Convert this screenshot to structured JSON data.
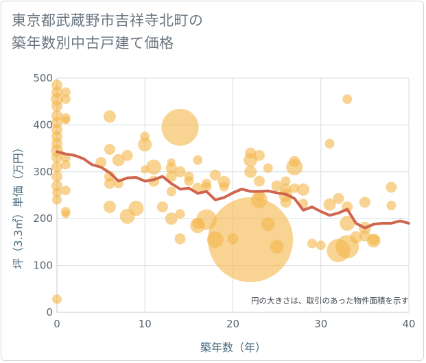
{
  "title_lines": [
    "東京都武蔵野市吉祥寺北町の",
    "築年数別中古戸建て価格"
  ],
  "chart_data": {
    "type": "scatter",
    "title": "東京都武蔵野市吉祥寺北町の築年数別中古戸建て価格",
    "xlabel": "築年数（年）",
    "ylabel": "坪（3.3㎡）単価（万円）",
    "xlim": [
      0,
      40
    ],
    "ylim": [
      0,
      500
    ],
    "xticks": [
      0,
      10,
      20,
      30,
      40
    ],
    "yticks": [
      0,
      100,
      200,
      300,
      400,
      500
    ],
    "grid": true,
    "annotation": "円の大きさは、取引のあった物件面積を示す",
    "colors": {
      "bubble": "#f3b84f",
      "line": "#d0654e",
      "grid": "#d5dde4",
      "axis": "#c6ccd2"
    },
    "bubbles": [
      {
        "x": 0,
        "y": 485,
        "s": 8
      },
      {
        "x": 0,
        "y": 470,
        "s": 8
      },
      {
        "x": 0,
        "y": 455,
        "s": 9
      },
      {
        "x": 0,
        "y": 440,
        "s": 8
      },
      {
        "x": 0,
        "y": 420,
        "s": 8
      },
      {
        "x": 0,
        "y": 405,
        "s": 8
      },
      {
        "x": 0,
        "y": 390,
        "s": 8
      },
      {
        "x": 0,
        "y": 375,
        "s": 8
      },
      {
        "x": 0,
        "y": 360,
        "s": 8
      },
      {
        "x": 0,
        "y": 345,
        "s": 9
      },
      {
        "x": 0,
        "y": 330,
        "s": 8
      },
      {
        "x": 0,
        "y": 310,
        "s": 8
      },
      {
        "x": 0,
        "y": 290,
        "s": 8
      },
      {
        "x": 0,
        "y": 270,
        "s": 8
      },
      {
        "x": 0,
        "y": 255,
        "s": 7
      },
      {
        "x": 0,
        "y": 240,
        "s": 7
      },
      {
        "x": 0,
        "y": 28,
        "s": 7
      },
      {
        "x": 1,
        "y": 470,
        "s": 7
      },
      {
        "x": 1,
        "y": 455,
        "s": 7
      },
      {
        "x": 1,
        "y": 415,
        "s": 7
      },
      {
        "x": 1,
        "y": 410,
        "s": 6
      },
      {
        "x": 1,
        "y": 330,
        "s": 7
      },
      {
        "x": 1,
        "y": 315,
        "s": 7
      },
      {
        "x": 1,
        "y": 260,
        "s": 7
      },
      {
        "x": 1,
        "y": 215,
        "s": 7
      },
      {
        "x": 1,
        "y": 210,
        "s": 6
      },
      {
        "x": 6,
        "y": 418,
        "s": 9
      },
      {
        "x": 6,
        "y": 348,
        "s": 8
      },
      {
        "x": 6,
        "y": 290,
        "s": 8
      },
      {
        "x": 6,
        "y": 275,
        "s": 8
      },
      {
        "x": 6,
        "y": 225,
        "s": 9
      },
      {
        "x": 7,
        "y": 325,
        "s": 9
      },
      {
        "x": 7,
        "y": 275,
        "s": 7
      },
      {
        "x": 5,
        "y": 320,
        "s": 8
      },
      {
        "x": 8,
        "y": 335,
        "s": 8
      },
      {
        "x": 8,
        "y": 205,
        "s": 11
      },
      {
        "x": 9,
        "y": 222,
        "s": 11
      },
      {
        "x": 10,
        "y": 375,
        "s": 7
      },
      {
        "x": 10,
        "y": 358,
        "s": 10
      },
      {
        "x": 10,
        "y": 305,
        "s": 6
      },
      {
        "x": 11,
        "y": 310,
        "s": 11
      },
      {
        "x": 11,
        "y": 280,
        "s": 8
      },
      {
        "x": 12,
        "y": 225,
        "s": 8
      },
      {
        "x": 13,
        "y": 320,
        "s": 6
      },
      {
        "x": 13,
        "y": 308,
        "s": 8
      },
      {
        "x": 13,
        "y": 290,
        "s": 8
      },
      {
        "x": 13,
        "y": 258,
        "s": 7
      },
      {
        "x": 13,
        "y": 200,
        "s": 9
      },
      {
        "x": 14,
        "y": 395,
        "s": 27
      },
      {
        "x": 14,
        "y": 300,
        "s": 8
      },
      {
        "x": 14,
        "y": 210,
        "s": 7
      },
      {
        "x": 14,
        "y": 157,
        "s": 8
      },
      {
        "x": 15,
        "y": 290,
        "s": 7
      },
      {
        "x": 15,
        "y": 280,
        "s": 7
      },
      {
        "x": 16,
        "y": 325,
        "s": 7
      },
      {
        "x": 16,
        "y": 265,
        "s": 8
      },
      {
        "x": 16,
        "y": 190,
        "s": 8
      },
      {
        "x": 16,
        "y": 185,
        "s": 11
      },
      {
        "x": 17,
        "y": 275,
        "s": 7
      },
      {
        "x": 17,
        "y": 268,
        "s": 7
      },
      {
        "x": 17,
        "y": 198,
        "s": 15
      },
      {
        "x": 18,
        "y": 293,
        "s": 8
      },
      {
        "x": 18,
        "y": 155,
        "s": 12
      },
      {
        "x": 19,
        "y": 278,
        "s": 9
      },
      {
        "x": 19,
        "y": 268,
        "s": 7
      },
      {
        "x": 20,
        "y": 157,
        "s": 8
      },
      {
        "x": 22,
        "y": 155,
        "s": 62
      },
      {
        "x": 22,
        "y": 340,
        "s": 8
      },
      {
        "x": 22,
        "y": 325,
        "s": 10
      },
      {
        "x": 22,
        "y": 300,
        "s": 9
      },
      {
        "x": 23,
        "y": 335,
        "s": 8
      },
      {
        "x": 23,
        "y": 280,
        "s": 8
      },
      {
        "x": 23,
        "y": 250,
        "s": 8
      },
      {
        "x": 23,
        "y": 240,
        "s": 12
      },
      {
        "x": 24,
        "y": 308,
        "s": 7
      },
      {
        "x": 24,
        "y": 188,
        "s": 10
      },
      {
        "x": 25,
        "y": 270,
        "s": 8
      },
      {
        "x": 25,
        "y": 140,
        "s": 10
      },
      {
        "x": 26,
        "y": 280,
        "s": 7
      },
      {
        "x": 26,
        "y": 263,
        "s": 8
      },
      {
        "x": 26,
        "y": 250,
        "s": 10
      },
      {
        "x": 26,
        "y": 235,
        "s": 8
      },
      {
        "x": 27,
        "y": 322,
        "s": 8
      },
      {
        "x": 27,
        "y": 310,
        "s": 12
      },
      {
        "x": 27,
        "y": 265,
        "s": 7
      },
      {
        "x": 28,
        "y": 262,
        "s": 9
      },
      {
        "x": 28,
        "y": 232,
        "s": 7
      },
      {
        "x": 29,
        "y": 147,
        "s": 7
      },
      {
        "x": 30,
        "y": 143,
        "s": 7
      },
      {
        "x": 31,
        "y": 360,
        "s": 7
      },
      {
        "x": 31,
        "y": 230,
        "s": 9
      },
      {
        "x": 32,
        "y": 243,
        "s": 8
      },
      {
        "x": 32,
        "y": 132,
        "s": 17
      },
      {
        "x": 33,
        "y": 455,
        "s": 7
      },
      {
        "x": 33,
        "y": 225,
        "s": 8
      },
      {
        "x": 33,
        "y": 190,
        "s": 11
      },
      {
        "x": 33,
        "y": 140,
        "s": 17
      },
      {
        "x": 34,
        "y": 160,
        "s": 9
      },
      {
        "x": 35,
        "y": 235,
        "s": 8
      },
      {
        "x": 35,
        "y": 180,
        "s": 9
      },
      {
        "x": 35,
        "y": 163,
        "s": 8
      },
      {
        "x": 36,
        "y": 155,
        "s": 8
      },
      {
        "x": 36,
        "y": 153,
        "s": 10
      },
      {
        "x": 38,
        "y": 267,
        "s": 8
      },
      {
        "x": 38,
        "y": 228,
        "s": 7
      }
    ],
    "trend": {
      "x": [
        0,
        1,
        2,
        3,
        4,
        5,
        6,
        7,
        8,
        9,
        10,
        11,
        12,
        13,
        14,
        15,
        16,
        17,
        18,
        19,
        20,
        21,
        22,
        23,
        24,
        25,
        26,
        27,
        28,
        29,
        30,
        31,
        32,
        33,
        34,
        35,
        36,
        37,
        38,
        39,
        40
      ],
      "y": [
        343,
        338,
        335,
        328,
        315,
        310,
        298,
        280,
        287,
        288,
        280,
        283,
        290,
        275,
        263,
        265,
        254,
        258,
        240,
        245,
        255,
        263,
        258,
        258,
        259,
        255,
        252,
        243,
        218,
        225,
        215,
        207,
        212,
        220,
        190,
        180,
        188,
        190,
        190,
        195,
        190
      ]
    }
  }
}
